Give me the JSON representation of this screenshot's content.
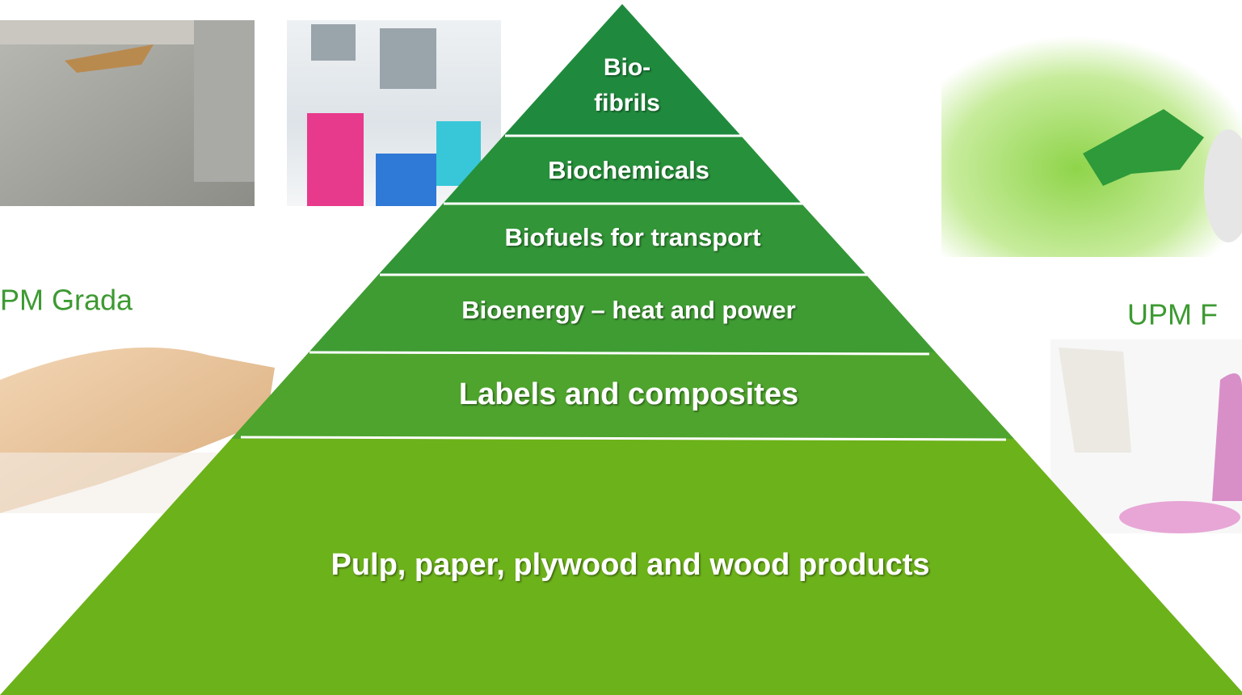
{
  "pyramid": {
    "layers": [
      {
        "label": [
          "Bio-",
          "fibrils"
        ]
      },
      {
        "label": "Biochemicals"
      },
      {
        "label": "Biofuels for transport"
      },
      {
        "label": "Bioenergy – heat and power"
      },
      {
        "label": "Labels and composites"
      },
      {
        "label": "Pulp, paper, plywood and wood products"
      }
    ]
  },
  "captions": [
    "PM Grada",
    "UPM F"
  ]
}
